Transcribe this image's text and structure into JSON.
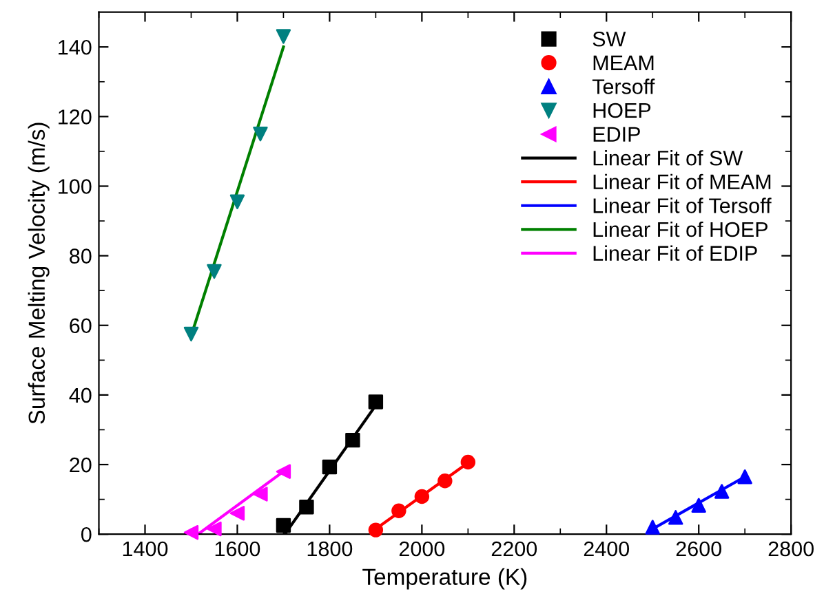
{
  "chart_data": {
    "type": "scatter",
    "xlabel": "Temperature (K)",
    "ylabel": "Surface Melting Velocity (m/s)",
    "xlim": [
      1300,
      2800
    ],
    "ylim": [
      0,
      150
    ],
    "xticks": [
      {
        "value": 1300,
        "label": null
      },
      1400,
      {
        "value": 1500,
        "label": null
      },
      1600,
      {
        "value": 1700,
        "label": null
      },
      1800,
      {
        "value": 1900,
        "label": null
      },
      2000,
      {
        "value": 2100,
        "label": null
      },
      2200,
      {
        "value": 2300,
        "label": null
      },
      2400,
      {
        "value": 2500,
        "label": null
      },
      2600,
      {
        "value": 2700,
        "label": null
      },
      2800
    ],
    "yticks": [
      0,
      {
        "value": 10,
        "label": null
      },
      20,
      {
        "value": 30,
        "label": null
      },
      40,
      {
        "value": 50,
        "label": null
      },
      60,
      {
        "value": 70,
        "label": null
      },
      80,
      {
        "value": 90,
        "label": null
      },
      100,
      {
        "value": 110,
        "label": null
      },
      120,
      {
        "value": 130,
        "label": null
      },
      140
    ],
    "grid": false,
    "legend": "top right",
    "series": [
      {
        "name": "SW",
        "marker": "square",
        "color": "#000000",
        "x": [
          1700,
          1750,
          1800,
          1850,
          1900
        ],
        "values": [
          2.5,
          7.8,
          19.3,
          27,
          38
        ]
      },
      {
        "name": "MEAM",
        "marker": "circle",
        "color": "#ff0000",
        "x": [
          1900,
          1950,
          2000,
          2050,
          2100
        ],
        "values": [
          1.2,
          6.7,
          10.8,
          15.3,
          20.7
        ]
      },
      {
        "name": "Tersoff",
        "marker": "triangle",
        "color": "#0000ff",
        "x": [
          2500,
          2550,
          2600,
          2650,
          2700
        ],
        "values": [
          2,
          4.8,
          8.3,
          12.3,
          16.5
        ]
      },
      {
        "name": "HOEP",
        "marker": "triangle_down",
        "color": "#008080",
        "x": [
          1500,
          1550,
          1600,
          1650,
          1700
        ],
        "values": [
          57.5,
          75.5,
          95.5,
          115,
          143
        ]
      },
      {
        "name": "EDIP",
        "marker": "triangle_left",
        "color": "#ff00ff",
        "x": [
          1500,
          1550,
          1600,
          1650,
          1700
        ],
        "values": [
          0.5,
          1.5,
          6,
          11.5,
          18
        ]
      },
      {
        "name": "Linear Fit of SW",
        "type": "line",
        "color": "#000000",
        "x": [
          1703,
          1900
        ],
        "values": [
          0,
          37
        ]
      },
      {
        "name": "Linear Fit of MEAM",
        "type": "line",
        "color": "#ff0000",
        "x": [
          1900,
          2100
        ],
        "values": [
          1.5,
          20.5
        ]
      },
      {
        "name": "Linear Fit of Tersoff",
        "type": "line",
        "color": "#0000ff",
        "x": [
          2500,
          2700
        ],
        "values": [
          1.5,
          16.5
        ]
      },
      {
        "name": "Linear Fit of HOEP",
        "type": "line",
        "color": "#008000",
        "x": [
          1500,
          1700
        ],
        "values": [
          57,
          140
        ]
      },
      {
        "name": "Linear Fit of EDIP",
        "type": "line",
        "color": "#ff00ff",
        "x": [
          1515,
          1700
        ],
        "values": [
          0,
          18
        ]
      }
    ]
  }
}
